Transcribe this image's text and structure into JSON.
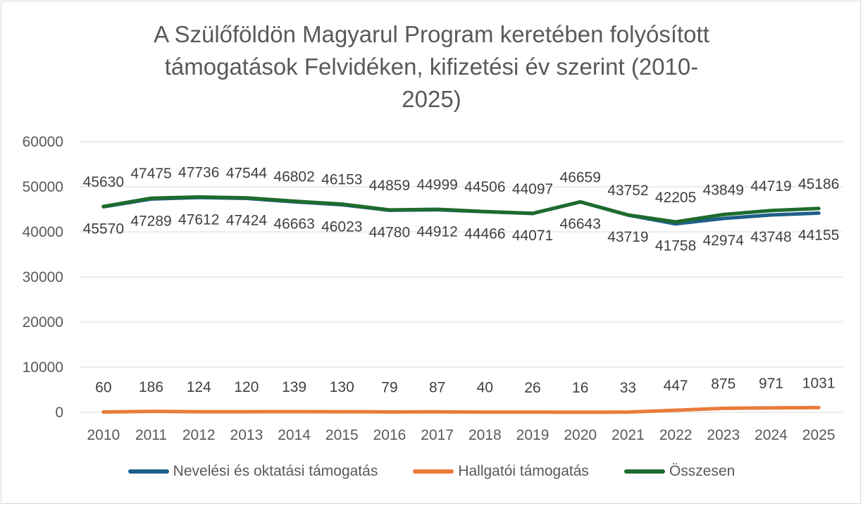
{
  "chart_data": {
    "type": "line",
    "title_lines": [
      "A Szülőföldön Magyarul Program keretében folyósított",
      "támogatások Felvidéken, kifizetési év szerint (2010-",
      "2025)"
    ],
    "categories": [
      "2010",
      "2011",
      "2012",
      "2013",
      "2014",
      "2015",
      "2016",
      "2017",
      "2018",
      "2019",
      "2020",
      "2021",
      "2022",
      "2023",
      "2024",
      "2025"
    ],
    "yticks": [
      "0",
      "10000",
      "20000",
      "30000",
      "40000",
      "50000",
      "60000"
    ],
    "ylim": [
      0,
      60000
    ],
    "grid": true,
    "legend_position": "bottom",
    "series": [
      {
        "name": "Nevelési és oktatási támogatás",
        "color": "#1f5f8b",
        "values": [
          45570,
          47289,
          47612,
          47424,
          46663,
          46023,
          44780,
          44912,
          44466,
          44071,
          46643,
          43719,
          41758,
          42974,
          43748,
          44155
        ],
        "labels": [
          "45570",
          "47289",
          "47612",
          "47424",
          "46663",
          "46023",
          "44780",
          "44912",
          "44466",
          "44071",
          "46643",
          "43719",
          "41758",
          "42974",
          "43748",
          "44155"
        ]
      },
      {
        "name": "Hallgatói támogatás",
        "color": "#e97b3b",
        "values": [
          60,
          186,
          124,
          120,
          139,
          130,
          79,
          87,
          40,
          26,
          16,
          33,
          447,
          875,
          971,
          1031
        ],
        "labels": [
          "60",
          "186",
          "124",
          "120",
          "139",
          "130",
          "79",
          "87",
          "40",
          "26",
          "16",
          "33",
          "447",
          "875",
          "971",
          "1031"
        ]
      },
      {
        "name": "Összesen",
        "color": "#1e6b2d",
        "values": [
          45630,
          47475,
          47736,
          47544,
          46802,
          46153,
          44859,
          44999,
          44506,
          44097,
          46659,
          43752,
          42205,
          43849,
          44719,
          45186
        ],
        "labels": [
          "45630",
          "47475",
          "47736",
          "47544",
          "46802",
          "46153",
          "44859",
          "44999",
          "44506",
          "44097",
          "46659",
          "43752",
          "42205",
          "43849",
          "44719",
          "45186"
        ]
      }
    ]
  }
}
